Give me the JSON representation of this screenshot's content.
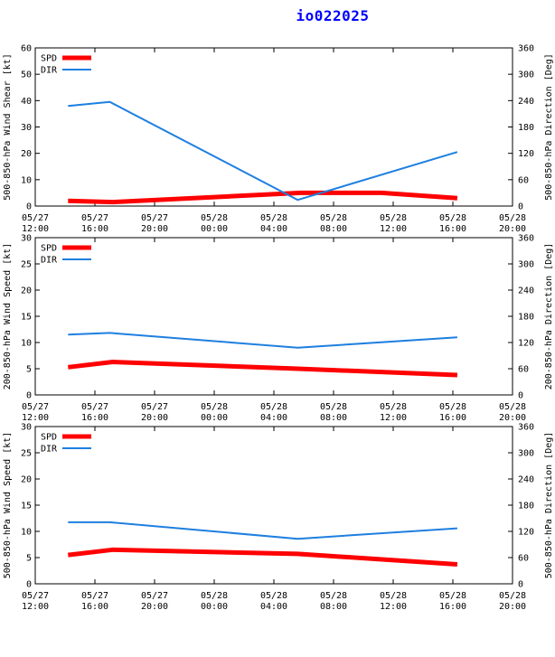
{
  "title": "io022025",
  "colors": {
    "spd": "#ff0000",
    "dir": "#1e7fe0",
    "axis": "#000000",
    "title": "#0000ff"
  },
  "chart_data": [
    {
      "type": "line",
      "ylabel": "500-850-hPa Wind Shear [kt]",
      "y2label": "500-850-hPa Direction [Deg]",
      "xtick_labels": [
        [
          "05/27",
          "12:00"
        ],
        [
          "05/27",
          "16:00"
        ],
        [
          "05/27",
          "20:00"
        ],
        [
          "05/28",
          "00:00"
        ],
        [
          "05/28",
          "04:00"
        ],
        [
          "05/28",
          "08:00"
        ],
        [
          "05/28",
          "12:00"
        ],
        [
          "05/28",
          "16:00"
        ],
        [
          "05/28",
          "20:00"
        ]
      ],
      "x_range_hours": [
        0,
        32
      ],
      "ylim": [
        0,
        60
      ],
      "y_ticks": [
        0,
        10,
        20,
        30,
        40,
        50,
        60
      ],
      "y2lim": [
        0,
        360
      ],
      "y2_ticks": [
        0,
        60,
        120,
        180,
        240,
        300,
        360
      ],
      "legend": [
        "SPD",
        "DIR"
      ],
      "series": [
        {
          "name": "SPD",
          "axis": "left",
          "x": [
            2.2,
            5.2,
            17.8,
            23.2,
            28.3
          ],
          "values": [
            2,
            1.5,
            5,
            5,
            3
          ]
        },
        {
          "name": "DIR",
          "axis": "right",
          "x": [
            2.2,
            5.0,
            17.6,
            28.3
          ],
          "values": [
            228,
            237,
            14,
            123
          ]
        }
      ]
    },
    {
      "type": "line",
      "ylabel": "200-850-hPa Wind Speed [kt]",
      "y2label": "200-850-hPa Direction [Deg]",
      "xtick_labels": [
        [
          "05/27",
          "12:00"
        ],
        [
          "05/27",
          "16:00"
        ],
        [
          "05/27",
          "20:00"
        ],
        [
          "05/28",
          "00:00"
        ],
        [
          "05/28",
          "04:00"
        ],
        [
          "05/28",
          "08:00"
        ],
        [
          "05/28",
          "12:00"
        ],
        [
          "05/28",
          "16:00"
        ],
        [
          "05/28",
          "20:00"
        ]
      ],
      "x_range_hours": [
        0,
        32
      ],
      "ylim": [
        0,
        30
      ],
      "y_ticks": [
        0,
        5,
        10,
        15,
        20,
        25,
        30
      ],
      "y2lim": [
        0,
        360
      ],
      "y2_ticks": [
        0,
        60,
        120,
        180,
        240,
        300,
        360
      ],
      "legend": [
        "SPD",
        "DIR"
      ],
      "series": [
        {
          "name": "SPD",
          "axis": "left",
          "x": [
            2.2,
            5.2,
            17.6,
            28.3
          ],
          "values": [
            5.3,
            6.3,
            5,
            3.8
          ]
        },
        {
          "name": "DIR",
          "axis": "right",
          "x": [
            2.2,
            5.0,
            17.6,
            28.3
          ],
          "values": [
            138,
            142,
            108,
            132
          ]
        }
      ]
    },
    {
      "type": "line",
      "ylabel": "500-850-hPa Wind Speed [kt]",
      "y2label": "500-850-hPa Direction [Deg]",
      "xtick_labels": [
        [
          "05/27",
          "12:00"
        ],
        [
          "05/27",
          "16:00"
        ],
        [
          "05/27",
          "20:00"
        ],
        [
          "05/28",
          "00:00"
        ],
        [
          "05/28",
          "04:00"
        ],
        [
          "05/28",
          "08:00"
        ],
        [
          "05/28",
          "12:00"
        ],
        [
          "05/28",
          "16:00"
        ],
        [
          "05/28",
          "20:00"
        ]
      ],
      "x_range_hours": [
        0,
        32
      ],
      "ylim": [
        0,
        30
      ],
      "y_ticks": [
        0,
        5,
        10,
        15,
        20,
        25,
        30
      ],
      "y2lim": [
        0,
        360
      ],
      "y2_ticks": [
        0,
        60,
        120,
        180,
        240,
        300,
        360
      ],
      "legend": [
        "SPD",
        "DIR"
      ],
      "series": [
        {
          "name": "SPD",
          "axis": "left",
          "x": [
            2.2,
            5.2,
            17.6,
            28.3
          ],
          "values": [
            5.5,
            6.5,
            5.7,
            3.7
          ]
        },
        {
          "name": "DIR",
          "axis": "right",
          "x": [
            2.2,
            5.0,
            17.6,
            28.3
          ],
          "values": [
            141,
            141,
            103,
            127
          ]
        }
      ]
    }
  ]
}
